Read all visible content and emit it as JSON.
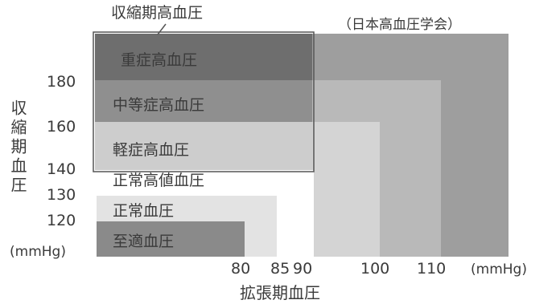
{
  "chart_data": {
    "type": "nested-region",
    "source": "（日本高血圧学会）",
    "inner_box_title": "収縮期高血圧",
    "x_axis_title": "拡張期血圧",
    "y_axis_title": "収縮期血圧",
    "x_unit": "(mmHg)",
    "y_unit": "(mmHg)",
    "x_ticks": [
      "80",
      "85",
      "90",
      "100",
      "110"
    ],
    "y_ticks": [
      "180",
      "160",
      "140",
      "130",
      "120"
    ],
    "categories": [
      {
        "label": "重症高血圧",
        "systolic_min": 180,
        "diastolic_min": 110,
        "color": "#9e9e9e"
      },
      {
        "label": "中等症高血圧",
        "systolic_min": 160,
        "diastolic_min": 100,
        "color": "#b9b9b9"
      },
      {
        "label": "軽症高血圧",
        "systolic_min": 140,
        "diastolic_min": 90,
        "color": "#d4d4d4"
      },
      {
        "label": "正常高値血圧",
        "systolic_max": 139,
        "diastolic_max": 89,
        "color": "#ffffff"
      },
      {
        "label": "正常血圧",
        "systolic_max": 129,
        "diastolic_max": 84,
        "color": "#e3e3e3"
      },
      {
        "label": "至適血圧",
        "systolic_max": 119,
        "diastolic_max": 79,
        "color": "#8a8a8a"
      }
    ],
    "isolated_systolic": {
      "label": "収縮期高血圧",
      "band_colors": [
        "#6e6e6e",
        "#8f8f8f",
        "#cdcdcd"
      ]
    }
  }
}
